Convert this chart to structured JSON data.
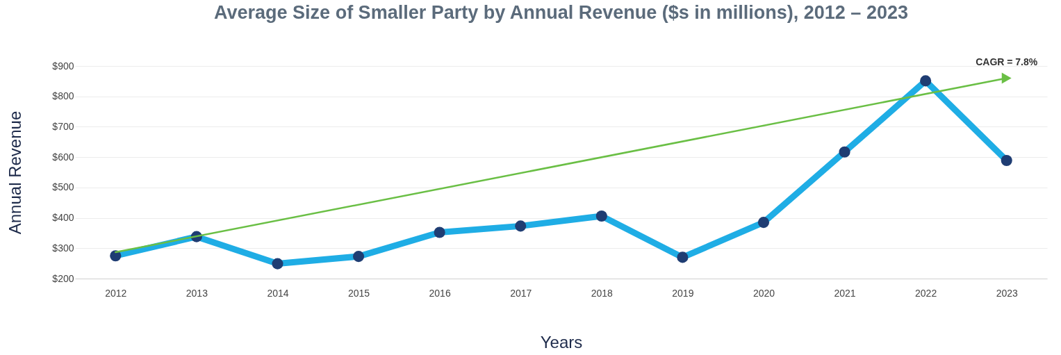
{
  "chart_data": {
    "type": "line",
    "title": "Average Size of Smaller Party by Annual Revenue ($s in millions), 2012 – 2023",
    "xlabel": "Years",
    "ylabel": "Annual Revenue",
    "categories": [
      "2012",
      "2013",
      "2014",
      "2015",
      "2016",
      "2017",
      "2018",
      "2019",
      "2020",
      "2021",
      "2022",
      "2023"
    ],
    "series": [
      {
        "color": "#1fade5",
        "values": [
          275,
          338,
          249,
          273,
          352,
          373,
          406,
          270,
          385,
          617,
          851,
          589
        ],
        "marker": "circle"
      },
      {
        "type": "line",
        "color": "#6abf45",
        "values": [
          287,
          null,
          null,
          null,
          null,
          null,
          null,
          null,
          null,
          null,
          null,
          860
        ],
        "marker": "triangle"
      }
    ],
    "ylim": [
      200,
      900
    ],
    "yticks": [
      {
        "value": 200,
        "label": "$200"
      },
      {
        "value": 300,
        "label": "$300"
      },
      {
        "value": 400,
        "label": "$400"
      },
      {
        "value": 500,
        "label": "$500"
      },
      {
        "value": 600,
        "label": "$600"
      },
      {
        "value": 700,
        "label": "$700"
      },
      {
        "value": 800,
        "label": "$800"
      },
      {
        "value": 900,
        "label": "$900"
      }
    ],
    "grid": "y",
    "annotations": [
      {
        "text": "CAGR = 7.8%",
        "x": "2023",
        "y": 860
      }
    ]
  }
}
